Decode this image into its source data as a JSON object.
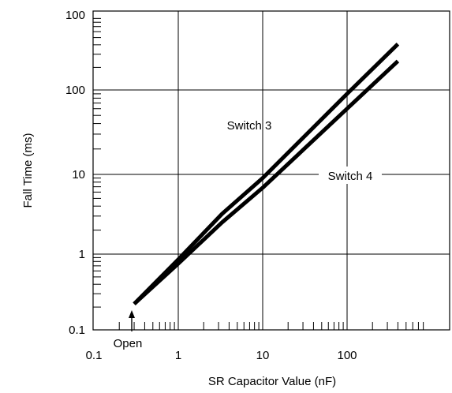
{
  "chart_data": {
    "type": "line",
    "title": "",
    "xlabel": "SR Capacitor Value (nF)",
    "ylabel": "Fall Time (ms)",
    "x_scale": "log",
    "y_scale": "log",
    "xlim": [
      0.1,
      800
    ],
    "grid": true,
    "x_ticks": [
      {
        "value": 0.1,
        "label": "0.1"
      },
      {
        "value": 1,
        "label": "1"
      },
      {
        "value": 10,
        "label": "10"
      },
      {
        "value": 100,
        "label": "100"
      }
    ],
    "y_ticks": [
      {
        "label": "0.1"
      },
      {
        "label": "1"
      },
      {
        "label": "10"
      },
      {
        "label": "100"
      },
      {
        "label": "100"
      }
    ],
    "series": [
      {
        "name": "Switch 3",
        "points": [
          [
            0.3,
            0.22
          ],
          [
            1,
            0.85
          ],
          [
            3.3,
            3.2
          ],
          [
            10,
            9.0
          ],
          [
            100,
            90
          ],
          [
            400,
            350
          ]
        ]
      },
      {
        "name": "Switch 4",
        "points": [
          [
            0.3,
            0.22
          ],
          [
            1,
            0.75
          ],
          [
            3.3,
            2.5
          ],
          [
            10,
            6.8
          ],
          [
            100,
            60
          ],
          [
            400,
            220
          ]
        ]
      }
    ],
    "annotations": [
      {
        "text": "Open",
        "x": 0.3
      }
    ]
  }
}
